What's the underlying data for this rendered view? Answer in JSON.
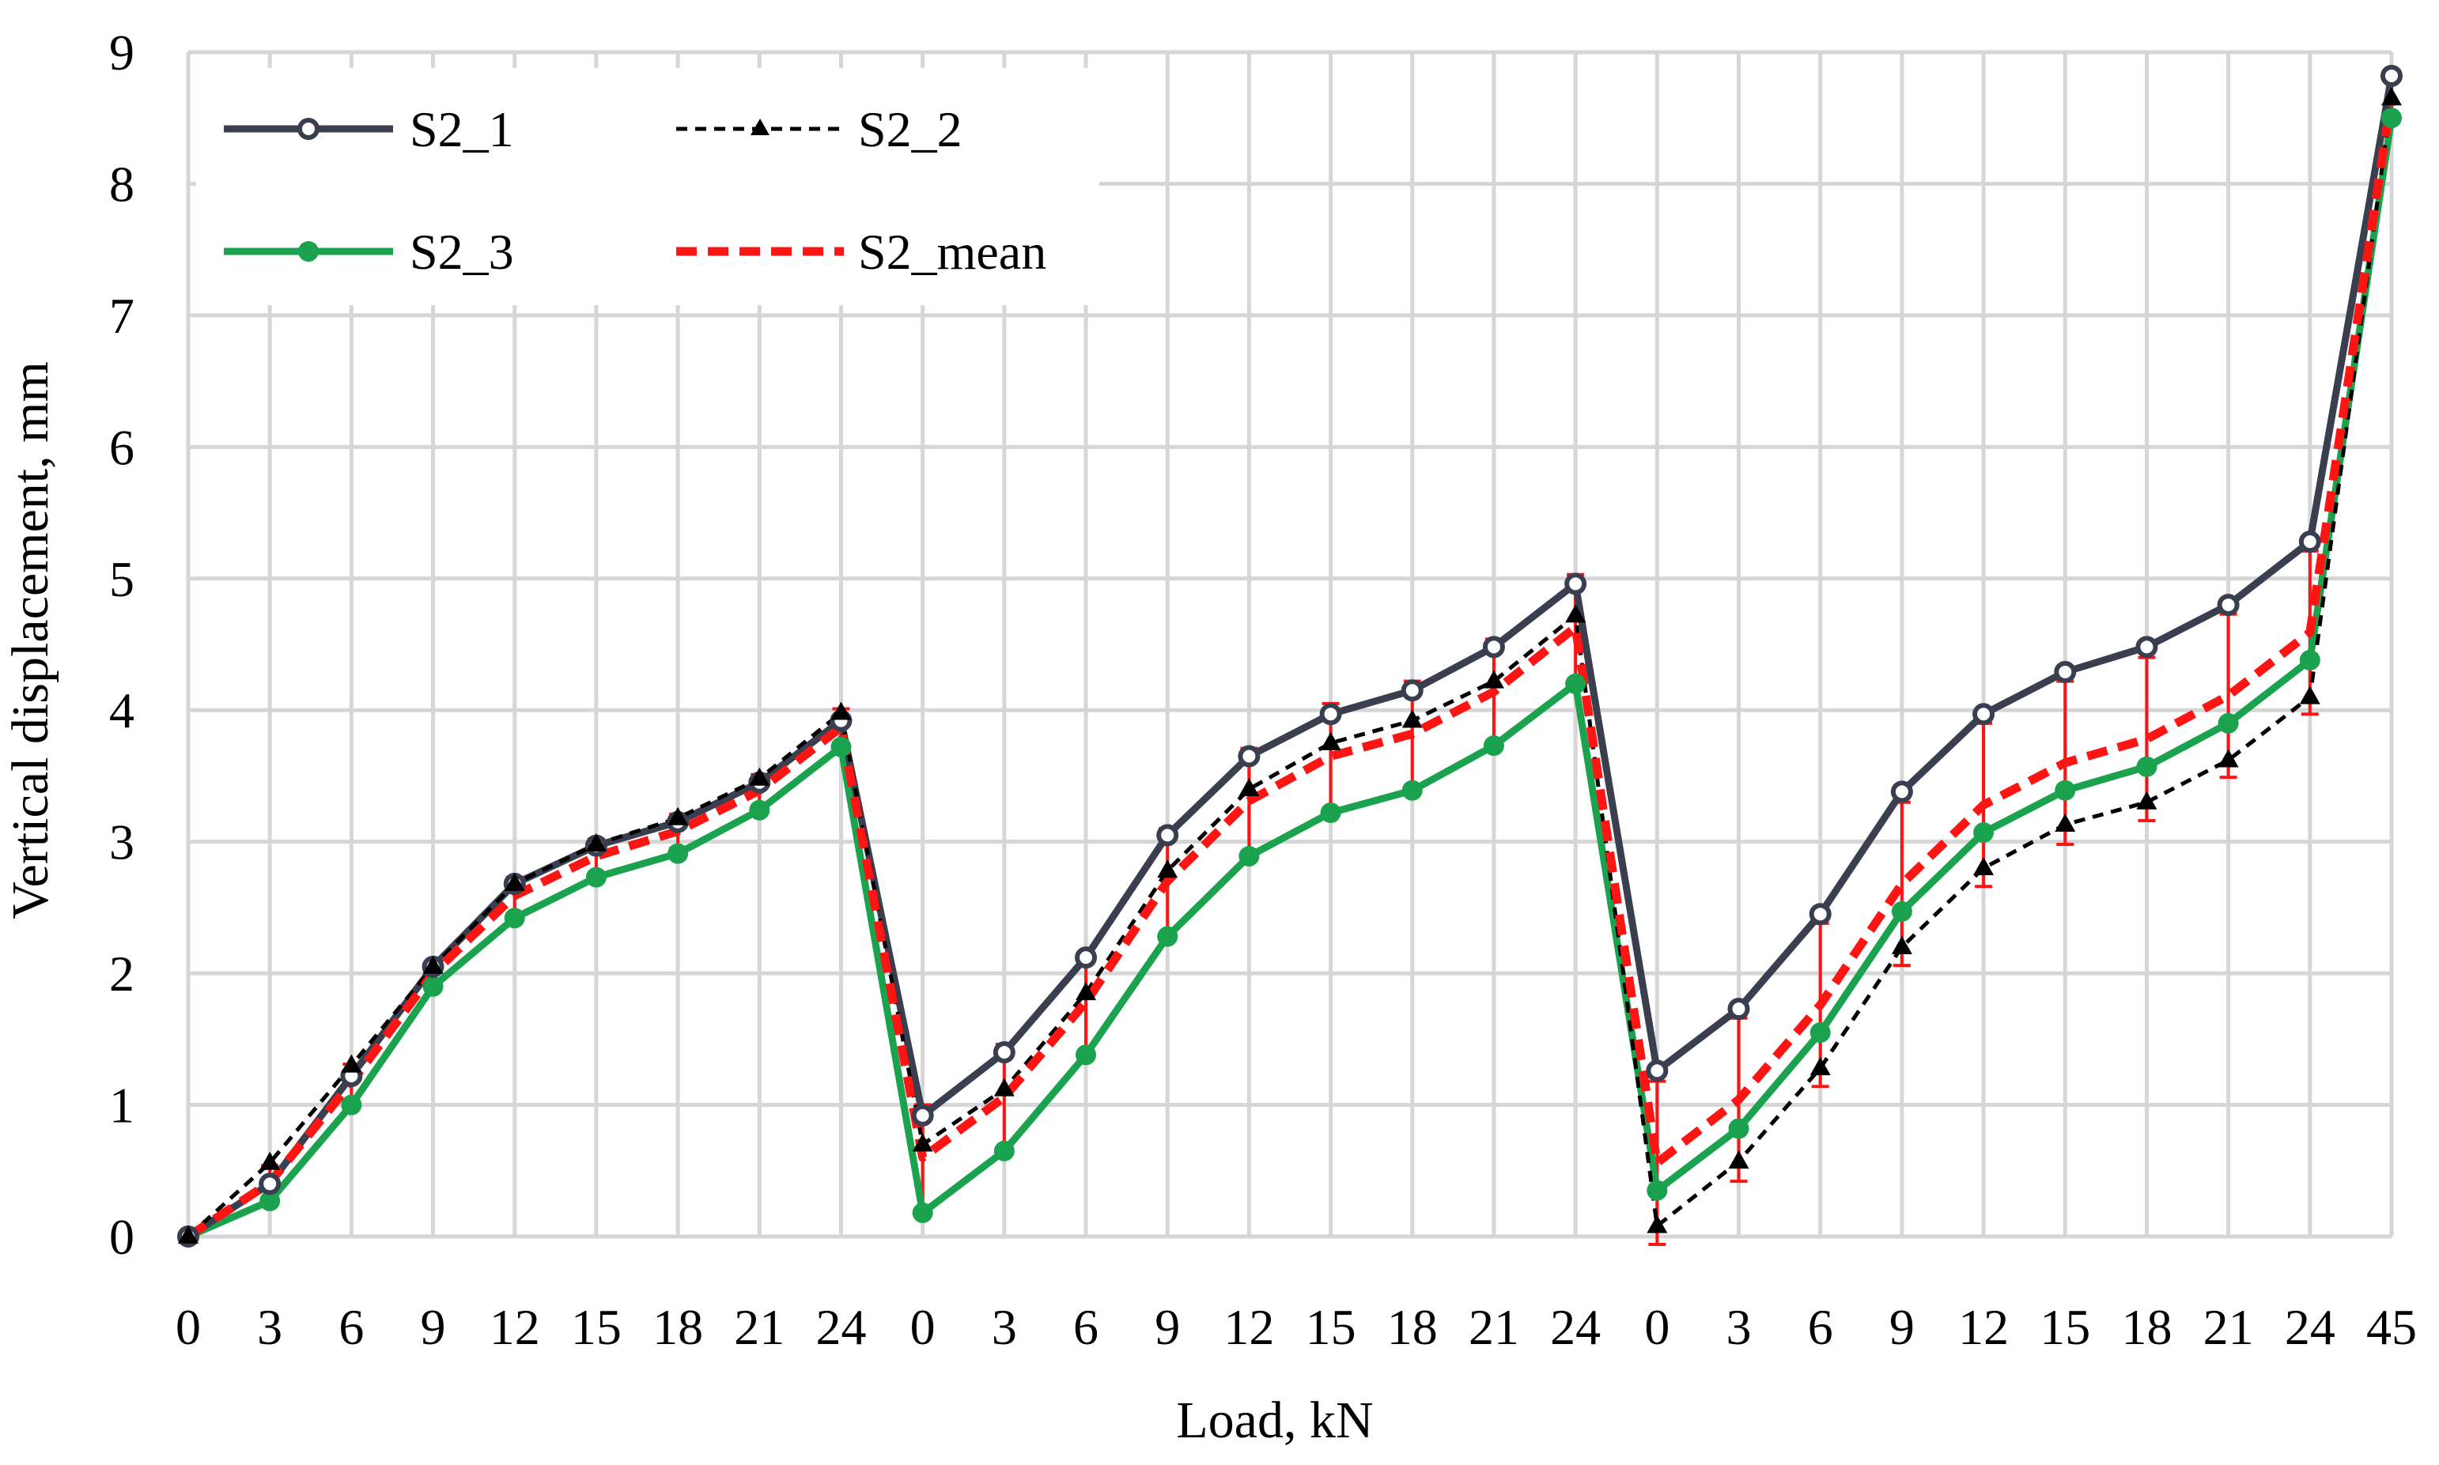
{
  "chart_data": {
    "type": "line",
    "xlabel": "Load, kN",
    "ylabel": "Vertical displacement, mm",
    "ylim": [
      0,
      9
    ],
    "yticks": [
      "0",
      "1",
      "2",
      "3",
      "4",
      "5",
      "6",
      "7",
      "8",
      "9"
    ],
    "categories": [
      "0",
      "3",
      "6",
      "9",
      "12",
      "15",
      "18",
      "21",
      "24",
      "0",
      "3",
      "6",
      "9",
      "12",
      "15",
      "18",
      "21",
      "24",
      "0",
      "3",
      "6",
      "9",
      "12",
      "15",
      "18",
      "21",
      "24",
      "45"
    ],
    "grid": true,
    "legend_position": "top-left",
    "series": [
      {
        "name": "S2_1",
        "color": "#3a3f4f",
        "style": "solid",
        "marker": "open-circle",
        "values": [
          0,
          0.4,
          1.22,
          2.05,
          2.68,
          2.97,
          3.15,
          3.45,
          3.92,
          0.92,
          1.4,
          2.12,
          3.05,
          3.65,
          3.97,
          4.15,
          4.48,
          4.96,
          1.26,
          1.73,
          2.45,
          3.38,
          3.97,
          4.29,
          4.48,
          4.8,
          5.28,
          8.82
        ]
      },
      {
        "name": "S2_2",
        "color": "#000000",
        "style": "dashed",
        "marker": "triangle",
        "values": [
          0,
          0.56,
          1.3,
          2.05,
          2.68,
          2.98,
          3.18,
          3.48,
          3.98,
          0.7,
          1.12,
          1.85,
          2.78,
          3.4,
          3.75,
          3.92,
          4.22,
          4.72,
          0.08,
          0.57,
          1.28,
          2.2,
          2.8,
          3.13,
          3.3,
          3.62,
          4.1,
          8.65
        ]
      },
      {
        "name": "S2_3",
        "color": "#1aa24e",
        "style": "solid",
        "marker": "filled-circle",
        "values": [
          0,
          0.27,
          1.0,
          1.9,
          2.42,
          2.73,
          2.91,
          3.24,
          3.72,
          0.18,
          0.65,
          1.38,
          2.28,
          2.89,
          3.22,
          3.39,
          3.73,
          4.2,
          0.35,
          0.82,
          1.55,
          2.47,
          3.07,
          3.39,
          3.57,
          3.9,
          4.38,
          8.5
        ]
      },
      {
        "name": "S2_mean",
        "color": "#ff1414",
        "style": "dashed",
        "marker": "none",
        "values": [
          0,
          0.41,
          1.17,
          2.0,
          2.59,
          2.89,
          3.08,
          3.39,
          3.87,
          0.6,
          1.06,
          1.78,
          2.7,
          3.31,
          3.65,
          3.82,
          4.14,
          4.63,
          0.56,
          1.04,
          1.76,
          2.68,
          3.28,
          3.6,
          3.78,
          4.11,
          4.59,
          8.66
        ],
        "error": [
          0.02,
          0.13,
          0.14,
          0.07,
          0.14,
          0.13,
          0.13,
          0.12,
          0.14,
          0.4,
          0.4,
          0.38,
          0.4,
          0.4,
          0.4,
          0.4,
          0.4,
          0.4,
          0.62,
          0.62,
          0.62,
          0.62,
          0.62,
          0.62,
          0.62,
          0.62,
          0.62,
          0.16
        ]
      }
    ]
  }
}
